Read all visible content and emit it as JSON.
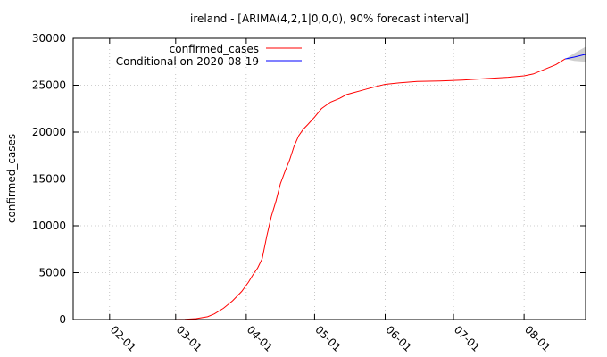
{
  "chart_data": {
    "type": "line",
    "title": "ireland -  [ARIMA(4,2,1|0,0,0), 90% forecast interval]",
    "xlabel": "",
    "ylabel": "confirmed_cases",
    "xlim": [
      "2020-01-16",
      "2020-08-28"
    ],
    "ylim": [
      0,
      30000
    ],
    "yticks": [
      0,
      5000,
      10000,
      15000,
      20000,
      25000,
      30000
    ],
    "yticklabels": [
      "0",
      "5000",
      "10000",
      "15000",
      "20000",
      "25000",
      "30000"
    ],
    "xticks": [
      "2020-02-01",
      "2020-03-01",
      "2020-04-01",
      "2020-05-01",
      "2020-06-01",
      "2020-07-01",
      "2020-08-01"
    ],
    "xticklabels": [
      "02-01",
      "03-01",
      "04-01",
      "05-01",
      "06-01",
      "07-01",
      "08-01"
    ],
    "grid": true,
    "legend_position": "top-left",
    "series": [
      {
        "name": "confirmed_cases",
        "color": "#ff0000",
        "x": [
          "2020-02-29",
          "2020-03-05",
          "2020-03-10",
          "2020-03-15",
          "2020-03-18",
          "2020-03-22",
          "2020-03-26",
          "2020-03-30",
          "2020-04-02",
          "2020-04-04",
          "2020-04-06",
          "2020-04-08",
          "2020-04-10",
          "2020-04-12",
          "2020-04-14",
          "2020-04-16",
          "2020-04-18",
          "2020-04-20",
          "2020-04-22",
          "2020-04-24",
          "2020-04-26",
          "2020-04-28",
          "2020-05-01",
          "2020-05-04",
          "2020-05-08",
          "2020-05-12",
          "2020-05-15",
          "2020-05-18",
          "2020-05-21",
          "2020-05-24",
          "2020-05-27",
          "2020-06-01",
          "2020-06-07",
          "2020-06-15",
          "2020-06-25",
          "2020-07-05",
          "2020-07-15",
          "2020-07-25",
          "2020-08-01",
          "2020-08-05",
          "2020-08-10",
          "2020-08-15",
          "2020-08-19"
        ],
        "values": [
          1,
          30,
          100,
          300,
          600,
          1200,
          2000,
          3000,
          4000,
          4800,
          5500,
          6500,
          8900,
          11000,
          12600,
          14500,
          15800,
          17000,
          18500,
          19600,
          20300,
          20800,
          21600,
          22500,
          23200,
          23600,
          24000,
          24200,
          24400,
          24600,
          24800,
          25100,
          25250,
          25400,
          25450,
          25550,
          25700,
          25850,
          26000,
          26200,
          26700,
          27200,
          27800
        ]
      },
      {
        "name": "Conditional on 2020-08-19",
        "color": "#0000ff",
        "x": [
          "2020-08-19",
          "2020-08-23",
          "2020-08-28"
        ],
        "values": [
          27800,
          28000,
          28300
        ],
        "interval_lower": [
          27800,
          27600,
          27500
        ],
        "interval_upper": [
          27800,
          28400,
          29100
        ],
        "interval_color": "#c0c0c0"
      }
    ]
  }
}
